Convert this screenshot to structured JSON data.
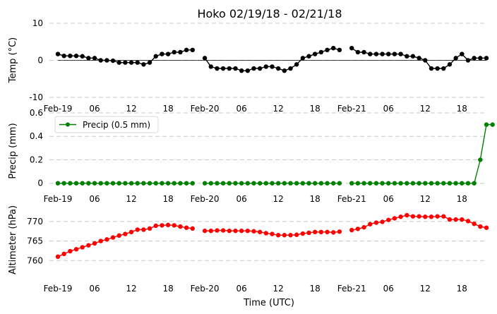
{
  "title": "Hoko 02/19/18 - 02/21/18",
  "xlabel": "Time (UTC)",
  "chart_data": [
    {
      "type": "line",
      "ylabel": "Temp (°C)",
      "ylim": [
        -10,
        10
      ],
      "yticks": [
        -10,
        0,
        10
      ],
      "grid": true,
      "color": "#000000",
      "zero_line": true,
      "x_hours": [
        0,
        1,
        2,
        3,
        4,
        5,
        6,
        7,
        8,
        9,
        10,
        11,
        12,
        13,
        14,
        15,
        16,
        17,
        18,
        19,
        20,
        21,
        22,
        23,
        24,
        25,
        26,
        27,
        28,
        29,
        30,
        31,
        32,
        33,
        34,
        35,
        36,
        37,
        38,
        39,
        40,
        41,
        42,
        43,
        44,
        45,
        46,
        47,
        48,
        49,
        50,
        51,
        52,
        53,
        54,
        55,
        56,
        57,
        58,
        59,
        60,
        61,
        62,
        63,
        64,
        65,
        66,
        67,
        68,
        69,
        70,
        71
      ],
      "values": [
        1.7,
        1.2,
        1.2,
        1.2,
        1.1,
        0.6,
        0.6,
        0.0,
        0.0,
        -0.1,
        -0.6,
        -0.6,
        -0.6,
        -0.6,
        -1.1,
        -0.6,
        1.1,
        1.7,
        1.7,
        2.2,
        2.2,
        2.8,
        2.8,
        null,
        0.6,
        -1.7,
        -2.2,
        -2.2,
        -2.2,
        -2.2,
        -2.8,
        -2.8,
        -2.2,
        -2.2,
        -1.7,
        -1.7,
        -2.2,
        -2.8,
        -2.2,
        -1.1,
        0.6,
        1.1,
        1.7,
        2.2,
        2.8,
        3.3,
        2.8,
        null,
        3.3,
        2.2,
        2.2,
        1.7,
        1.7,
        1.7,
        1.7,
        1.7,
        1.7,
        1.1,
        1.1,
        0.6,
        0.0,
        -2.2,
        -2.2,
        -2.2,
        -1.1,
        0.6,
        1.7,
        0.0,
        0.6,
        0.6,
        0.6,
        null
      ]
    },
    {
      "type": "line",
      "ylabel": "Precip (mm)",
      "ylim": [
        -0.05,
        0.6
      ],
      "yticks": [
        0.0,
        0.2,
        0.4,
        0.6
      ],
      "grid": true,
      "color": "#008000",
      "legend": "Precip (0.5 mm)",
      "legend_position": "top-left",
      "x_hours": [
        0,
        1,
        2,
        3,
        4,
        5,
        6,
        7,
        8,
        9,
        10,
        11,
        12,
        13,
        14,
        15,
        16,
        17,
        18,
        19,
        20,
        21,
        22,
        23,
        24,
        25,
        26,
        27,
        28,
        29,
        30,
        31,
        32,
        33,
        34,
        35,
        36,
        37,
        38,
        39,
        40,
        41,
        42,
        43,
        44,
        45,
        46,
        47,
        48,
        49,
        50,
        51,
        52,
        53,
        54,
        55,
        56,
        57,
        58,
        59,
        60,
        61,
        62,
        63,
        64,
        65,
        66,
        67,
        68,
        69,
        70,
        71
      ],
      "values": [
        0,
        0,
        0,
        0,
        0,
        0,
        0,
        0,
        0,
        0,
        0,
        0,
        0,
        0,
        0,
        0,
        0,
        0,
        0,
        0,
        0,
        0,
        0,
        null,
        0,
        0,
        0,
        0,
        0,
        0,
        0,
        0,
        0,
        0,
        0,
        0,
        0,
        0,
        0,
        0,
        0,
        0,
        0,
        0,
        0,
        0,
        0,
        null,
        0,
        0,
        0,
        0,
        0,
        0,
        0,
        0,
        0,
        0,
        0,
        0,
        0,
        0,
        0,
        0,
        0,
        0,
        0,
        0,
        0,
        0.2,
        0.5,
        0.5
      ]
    },
    {
      "type": "line",
      "ylabel": "Altimeter (hPa)",
      "ylim": [
        755,
        772.5
      ],
      "yticks": [
        760,
        765,
        770
      ],
      "grid": true,
      "color": "#ff0000",
      "x_hours": [
        0,
        1,
        2,
        3,
        4,
        5,
        6,
        7,
        8,
        9,
        10,
        11,
        12,
        13,
        14,
        15,
        16,
        17,
        18,
        19,
        20,
        21,
        22,
        23,
        24,
        25,
        26,
        27,
        28,
        29,
        30,
        31,
        32,
        33,
        34,
        35,
        36,
        37,
        38,
        39,
        40,
        41,
        42,
        43,
        44,
        45,
        46,
        47,
        48,
        49,
        50,
        51,
        52,
        53,
        54,
        55,
        56,
        57,
        58,
        59,
        60,
        61,
        62,
        63,
        64,
        65,
        66,
        67,
        68,
        69,
        70,
        71
      ],
      "values": [
        761.0,
        761.7,
        762.4,
        762.9,
        763.4,
        763.9,
        764.4,
        765.0,
        765.4,
        765.9,
        766.4,
        766.8,
        767.3,
        767.9,
        767.9,
        768.2,
        768.9,
        769.0,
        769.1,
        769.0,
        768.7,
        768.4,
        768.2,
        null,
        767.6,
        767.6,
        767.7,
        767.7,
        767.6,
        767.6,
        767.6,
        767.6,
        767.5,
        767.3,
        767.0,
        766.8,
        766.5,
        766.5,
        766.5,
        766.6,
        766.9,
        767.1,
        767.3,
        767.3,
        767.3,
        767.2,
        767.4,
        null,
        767.8,
        768.1,
        768.5,
        769.3,
        769.7,
        769.9,
        770.4,
        770.8,
        771.2,
        771.6,
        771.3,
        771.3,
        771.2,
        771.2,
        771.3,
        771.3,
        770.5,
        770.5,
        770.5,
        770.1,
        769.4,
        768.7,
        768.4,
        null
      ]
    }
  ],
  "x_ticks": [
    {
      "hour": 0,
      "label": "Feb-19"
    },
    {
      "hour": 6,
      "label": "06"
    },
    {
      "hour": 12,
      "label": "12"
    },
    {
      "hour": 18,
      "label": "18"
    },
    {
      "hour": 24,
      "label": "Feb-20"
    },
    {
      "hour": 30,
      "label": "06"
    },
    {
      "hour": 36,
      "label": "12"
    },
    {
      "hour": 42,
      "label": "18"
    },
    {
      "hour": 48,
      "label": "Feb-21"
    },
    {
      "hour": 54,
      "label": "06"
    },
    {
      "hour": 60,
      "label": "12"
    },
    {
      "hour": 66,
      "label": "18"
    }
  ]
}
